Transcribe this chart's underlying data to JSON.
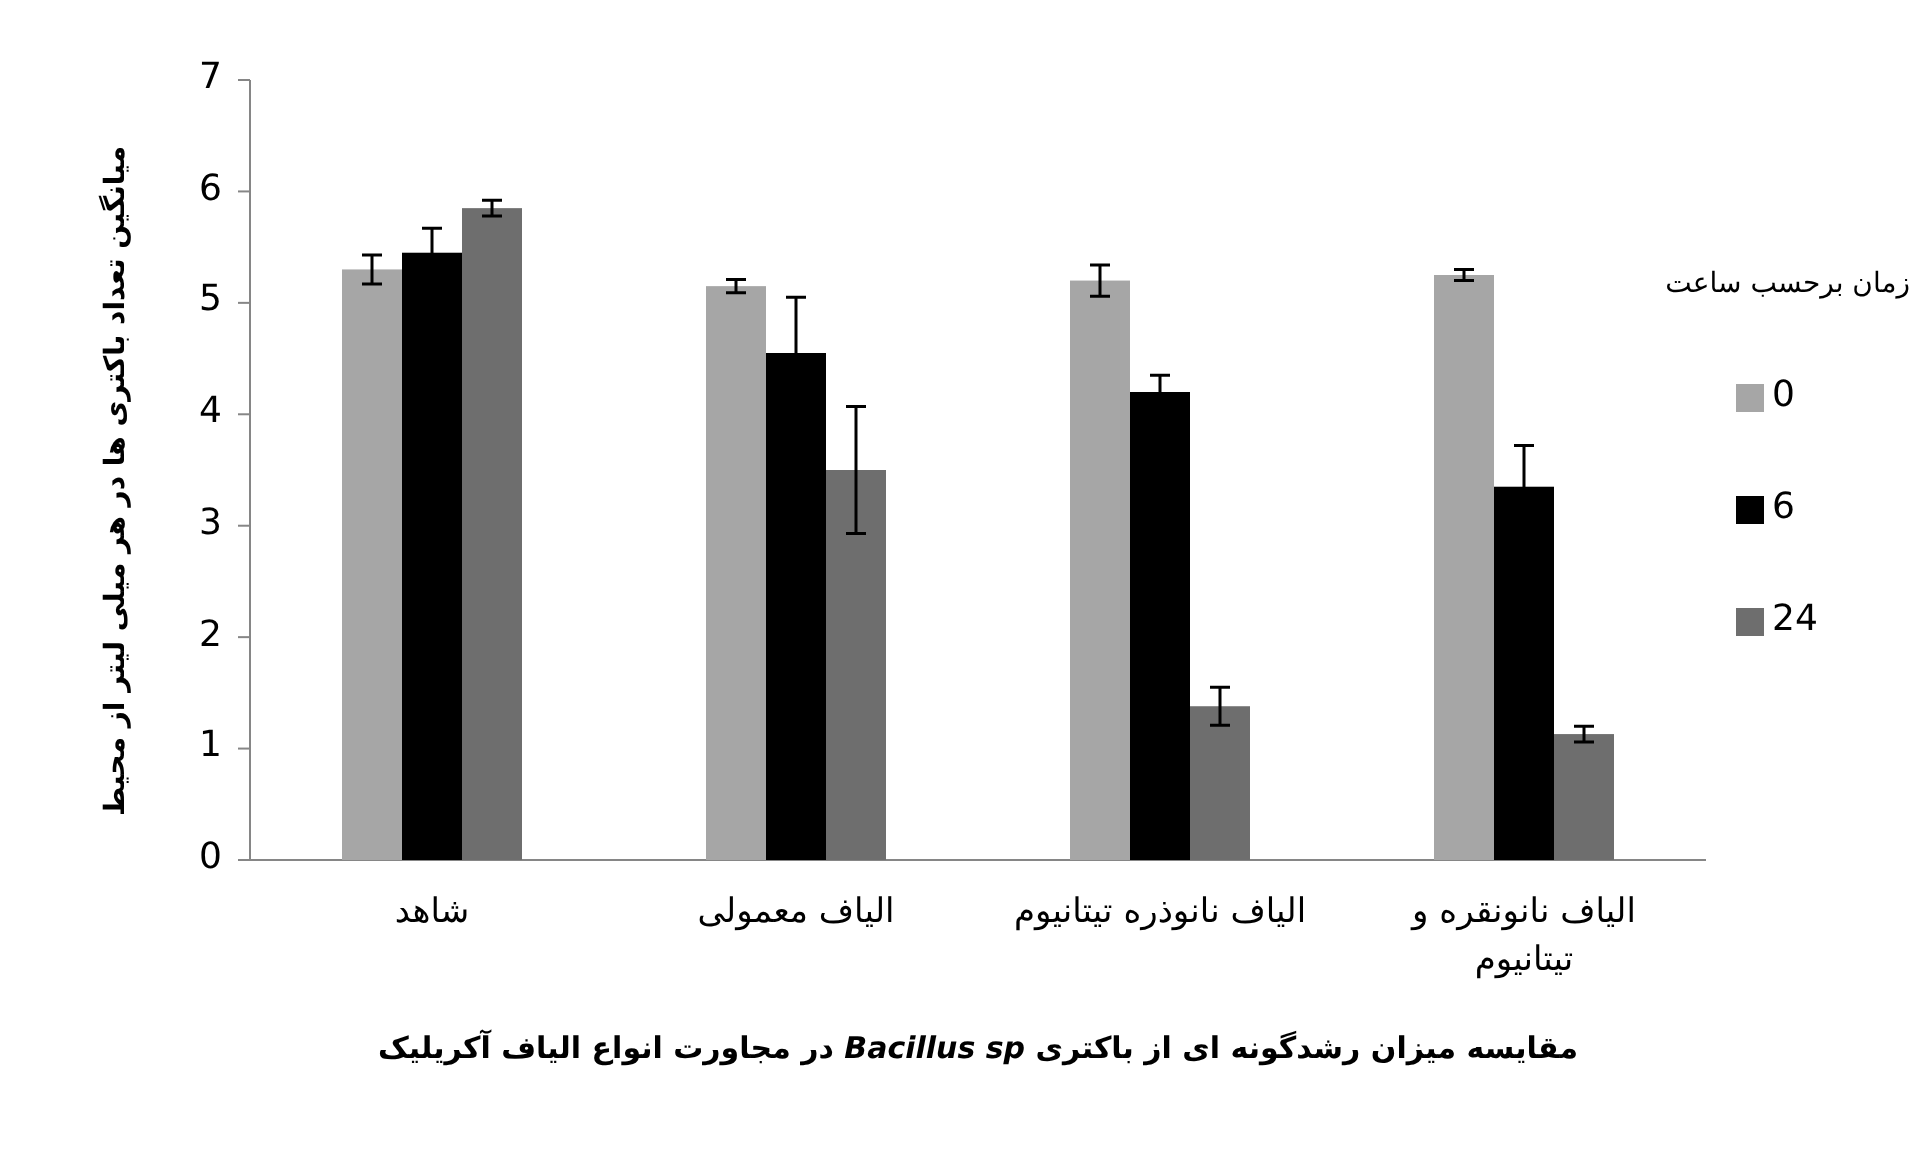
{
  "chart_data": {
    "type": "bar",
    "title": "مقایسه میزان رشدگونه ای از باکتری *Bacillus sp* در مجاورت انواع الیاف آکریلیک",
    "ylabel": "میانگین تعداد باکتری ها در هر میلی لیتر از محیط",
    "legend_title": "زمان برحسب ساعت",
    "categories": [
      "شاهد",
      "الیاف معمولی",
      "الیاف نانوذره تیتانیوم",
      "الیاف نانونقره و تیتانیوم"
    ],
    "series": [
      {
        "name": "0",
        "color": "#a6a6a6",
        "values": [
          5.3,
          5.15,
          5.2,
          5.25
        ],
        "errors": [
          0.13,
          0.06,
          0.14,
          0.05
        ]
      },
      {
        "name": "6",
        "color": "#000000",
        "values": [
          5.45,
          4.55,
          4.2,
          3.35
        ],
        "errors": [
          0.22,
          0.5,
          0.15,
          0.37
        ]
      },
      {
        "name": "24",
        "color": "#6e6e6e",
        "values": [
          5.85,
          3.5,
          1.38,
          1.13
        ],
        "errors": [
          0.07,
          0.57,
          0.17,
          0.07
        ]
      }
    ],
    "ylim": [
      0,
      7
    ],
    "yticks": [
      0,
      1,
      2,
      3,
      4,
      5,
      6,
      7
    ],
    "grid": false,
    "legend": "right"
  }
}
